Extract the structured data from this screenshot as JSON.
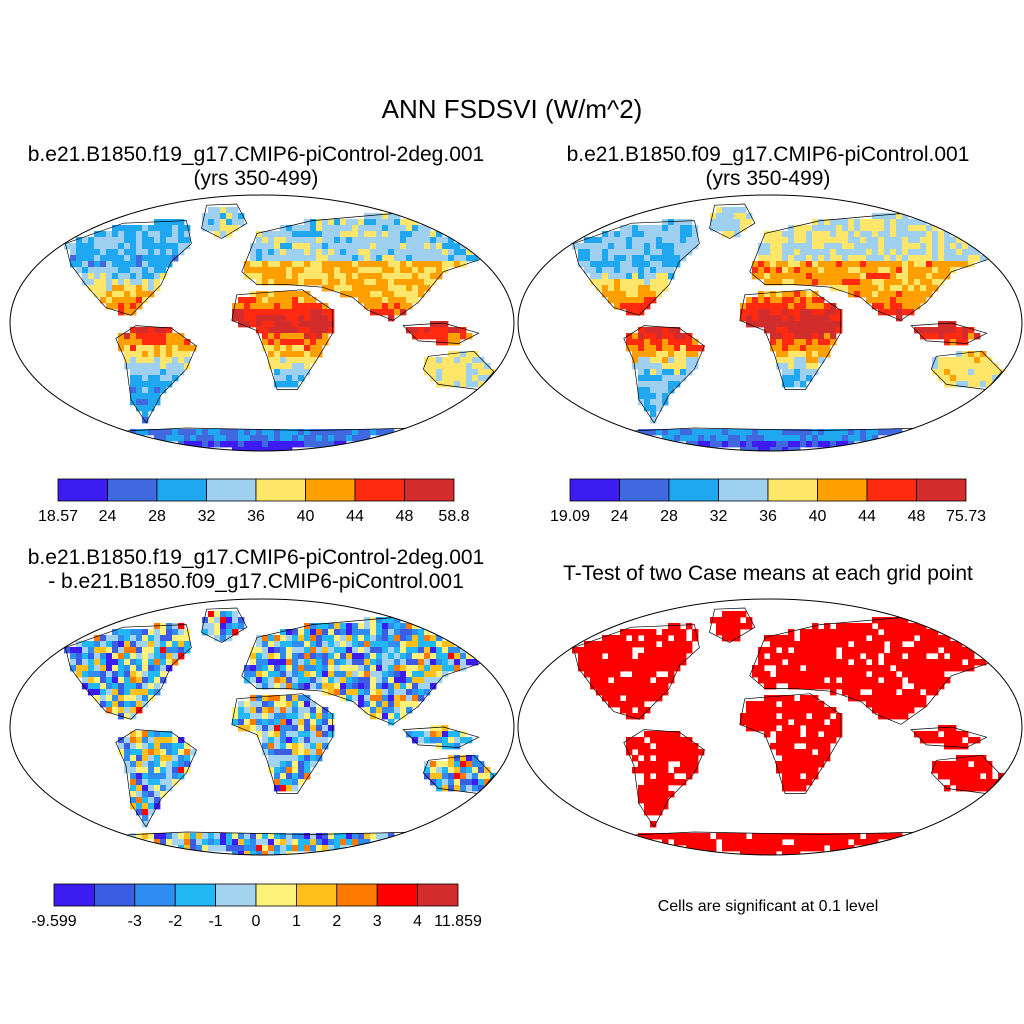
{
  "figure": {
    "title": "ANN FSDSVI (W/m^2)"
  },
  "colors": {
    "land_mask": "#ffffff",
    "frame": "#000000",
    "sig_fill": "#ff0000"
  },
  "chart_data": [
    {
      "type": "heatmap",
      "panel": "top-left",
      "title_line1": "b.e21.B1850.f19_g17.CMIP6-piControl-2deg.001",
      "title_line2": "(yrs 350-499)",
      "projection": "Robinson-like global map",
      "colorbar": {
        "ticks": [
          "18.57",
          "24",
          "28",
          "32",
          "36",
          "40",
          "44",
          "48",
          "58.8"
        ],
        "colors": [
          "#3d1cf2",
          "#4069e0",
          "#1fa8f0",
          "#a0d0f0",
          "#fde66a",
          "#ffa000",
          "#ff2a10",
          "#d22c2c"
        ]
      }
    },
    {
      "type": "heatmap",
      "panel": "top-right",
      "title_line1": "b.e21.B1850.f09_g17.CMIP6-piControl.001",
      "title_line2": "(yrs 350-499)",
      "projection": "Robinson-like global map",
      "colorbar": {
        "ticks": [
          "19.09",
          "24",
          "28",
          "32",
          "36",
          "40",
          "44",
          "48",
          "75.73"
        ],
        "colors": [
          "#3d1cf2",
          "#4069e0",
          "#1fa8f0",
          "#a0d0f0",
          "#fde66a",
          "#ffa000",
          "#ff2a10",
          "#d22c2c"
        ]
      }
    },
    {
      "type": "heatmap",
      "panel": "bottom-left",
      "title_line1": "b.e21.B1850.f19_g17.CMIP6-piControl-2deg.001",
      "title_line2": "- b.e21.B1850.f09_g17.CMIP6-piControl.001",
      "projection": "Robinson-like global map",
      "colorbar": {
        "ticks": [
          "-9.599",
          "-3",
          "-2",
          "-1",
          "0",
          "1",
          "2",
          "3",
          "4",
          "11.859"
        ],
        "tick_index": [
          0,
          2,
          3,
          4,
          5,
          6,
          7,
          8,
          9,
          10
        ],
        "colors": [
          "#3d1cf2",
          "#3a5de3",
          "#2f8cf0",
          "#22b8f5",
          "#a3d3ef",
          "#fff27a",
          "#ffbf1c",
          "#ff7a00",
          "#ff0000",
          "#d22c2c"
        ]
      }
    },
    {
      "type": "heatmap",
      "panel": "bottom-right",
      "title": "T-Test of two Case means at each grid point",
      "note": "Cells are significant at 0.1 level",
      "projection": "Robinson-like global map",
      "fill_color": "#ff0000"
    }
  ]
}
